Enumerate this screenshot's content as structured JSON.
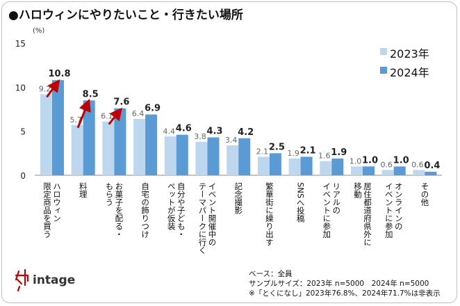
{
  "chart_data": {
    "type": "bar",
    "title": "●ハロウィンにやりたいこと・行きたい場所",
    "unit_label": "(%)",
    "ylim": [
      0,
      15
    ],
    "yticks": [
      0,
      5,
      10,
      15
    ],
    "grid": false,
    "legend_position": "top-right",
    "categories": [
      [
        "ハロウィン",
        "限定商品を買う"
      ],
      [
        "料理"
      ],
      [
        "お菓子を配る・",
        "もらう"
      ],
      [
        "自宅の飾りつけ"
      ],
      [
        "自分や子ども・",
        "ペットが仮装"
      ],
      [
        "イベント開催中の",
        "テーマパークに行く"
      ],
      [
        "記念撮影"
      ],
      [
        "繁華街に繰り出す"
      ],
      [
        "SNSへ投稿"
      ],
      [
        "リアルの",
        "イベントに参加"
      ],
      [
        "居住都道府県外に",
        "移動"
      ],
      [
        "オンラインの",
        "イベントに参加"
      ],
      [
        "その他"
      ]
    ],
    "series": [
      {
        "name": "2023年",
        "color": "#bdd7ee",
        "values": [
          9.2,
          5.7,
          6.1,
          6.4,
          4.4,
          3.8,
          3.4,
          2.1,
          1.9,
          1.6,
          1.0,
          0.6,
          0.6
        ]
      },
      {
        "name": "2024年",
        "color": "#5b9bd5",
        "values": [
          10.8,
          8.5,
          7.6,
          6.9,
          4.6,
          4.3,
          4.2,
          2.5,
          2.1,
          1.9,
          1.0,
          1.0,
          0.4
        ]
      }
    ],
    "labels_2023": [
      "9.2",
      "5.7",
      "6.1",
      "6.4",
      "4.4",
      "3.8",
      "3.4",
      "2.1",
      "1.9",
      "1.6",
      "1.0",
      "0.6",
      "0.6"
    ],
    "labels_2024": [
      "10.8",
      "8.5",
      "7.6",
      "6.9",
      "4.6",
      "4.3",
      "4.2",
      "2.5",
      "2.1",
      "1.9",
      "1.0",
      "1.0",
      "0.4"
    ],
    "highlight_arrows": [
      0,
      1,
      2
    ],
    "arrow_color": "#c00000"
  },
  "notes": {
    "line1": "ベース：全員",
    "line2": "サンプルサイズ：2023年 n=5000　2024年 n=5000",
    "line3": "※「とくになし」2023年76.8%、2024年71.7%は非表示"
  },
  "brand": {
    "name": "intage",
    "color": "#c00000"
  }
}
